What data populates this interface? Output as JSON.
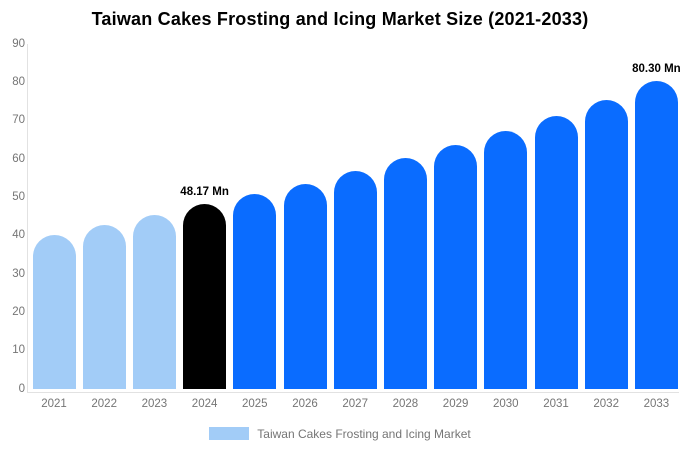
{
  "chart_data": {
    "type": "bar",
    "title": "Taiwan Cakes Frosting and Icing Market Size (2021-2033)",
    "categories": [
      "2021",
      "2022",
      "2023",
      "2024",
      "2025",
      "2026",
      "2027",
      "2028",
      "2029",
      "2030",
      "2031",
      "2032",
      "2033"
    ],
    "values": [
      40.2,
      42.7,
      45.3,
      48.17,
      50.8,
      53.5,
      56.8,
      60.2,
      63.7,
      67.4,
      71.3,
      75.5,
      80.3
    ],
    "unit": "Mn",
    "xlabel": "",
    "ylabel": "",
    "ylim": [
      0,
      90
    ],
    "y_ticks": [
      0,
      10,
      20,
      30,
      40,
      50,
      60,
      70,
      80,
      90
    ],
    "grid": false,
    "legend_position": "bottom",
    "bar_colors": {
      "historical": "#a2ccf7",
      "highlight": "#000000",
      "forecast": "#0a6cff"
    },
    "bar_color_keys": [
      "historical",
      "historical",
      "historical",
      "highlight",
      "forecast",
      "forecast",
      "forecast",
      "forecast",
      "forecast",
      "forecast",
      "forecast",
      "forecast",
      "forecast"
    ],
    "annotations": [
      {
        "year": "2024",
        "text": "48.17 Mn"
      },
      {
        "year": "2033",
        "text": "80.30 Mn"
      }
    ],
    "legend": {
      "label": "Taiwan Cakes Frosting and Icing Market",
      "swatch_color": "#a2ccf7"
    }
  },
  "colors": {
    "axis_line": "#e2e2e2",
    "tick_text": "#757575",
    "title_text": "#000000",
    "legend_text": "#757575",
    "background": "#ffffff"
  }
}
